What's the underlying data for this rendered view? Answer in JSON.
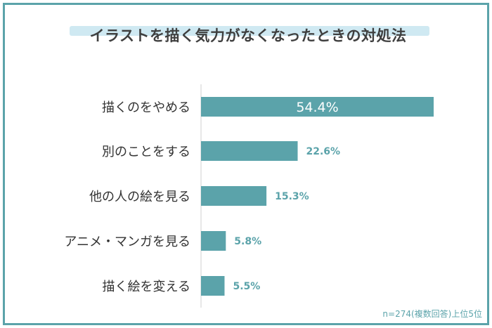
{
  "title": "イラストを描く気力がなくなったときの対処法",
  "note": "n=274(複数回答)上位5位",
  "colors": {
    "bar": "#5ba3aa",
    "frame": "#5ba3aa",
    "highlight": "#cfe9f2",
    "label_inside": "#ffffff",
    "label_outside": "#5ba3aa"
  },
  "chart_data": {
    "type": "bar",
    "orientation": "horizontal",
    "categories": [
      "描くのをやめる",
      "別のことをする",
      "他の人の絵を見る",
      "アニメ・マンガを見る",
      "描く絵を変える"
    ],
    "values": [
      54.4,
      22.6,
      15.3,
      5.8,
      5.5
    ],
    "value_labels": [
      "54.4%",
      "22.6%",
      "15.3%",
      "5.8%",
      "5.5%"
    ],
    "unit": "%",
    "xlim": [
      0,
      54.4
    ],
    "grid": false
  }
}
